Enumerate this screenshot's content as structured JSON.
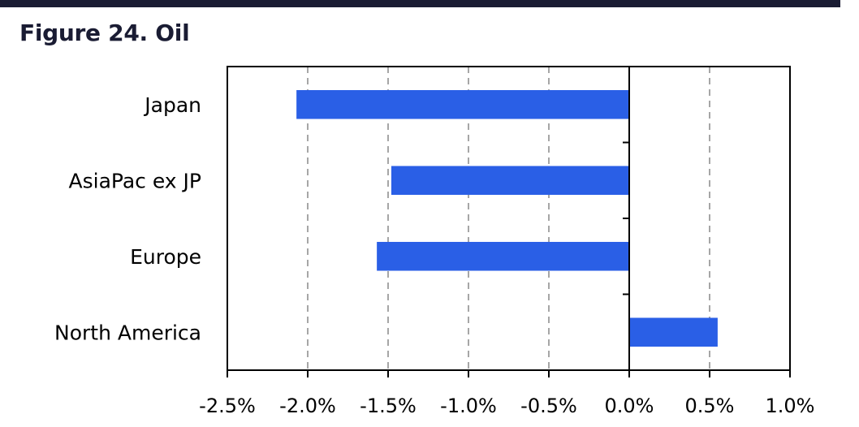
{
  "figure": {
    "title": "Figure 24. Oil"
  },
  "colors": {
    "bar": "#2a5fe6",
    "title": "#1a1c33",
    "rule": "#1a1c33",
    "grid": "#a6a6a6"
  },
  "chart_data": {
    "type": "bar",
    "orientation": "horizontal",
    "title": "Figure 24. Oil",
    "categories": [
      "Japan",
      "AsiaPac ex JP",
      "Europe",
      "North America"
    ],
    "values": [
      -0.0207,
      -0.0148,
      -0.0157,
      0.0055
    ],
    "xlim": [
      -0.025,
      0.01
    ],
    "xticks": [
      -0.025,
      -0.02,
      -0.015,
      -0.01,
      -0.005,
      0.0,
      0.005,
      0.01
    ],
    "xtick_labels": [
      "-2.5%",
      "-2.0%",
      "-1.5%",
      "-1.0%",
      "-0.5%",
      "0.0%",
      "0.5%",
      "1.0%"
    ],
    "xlabel": "",
    "ylabel": "",
    "grid": "vertical dashed",
    "legend": "none"
  }
}
